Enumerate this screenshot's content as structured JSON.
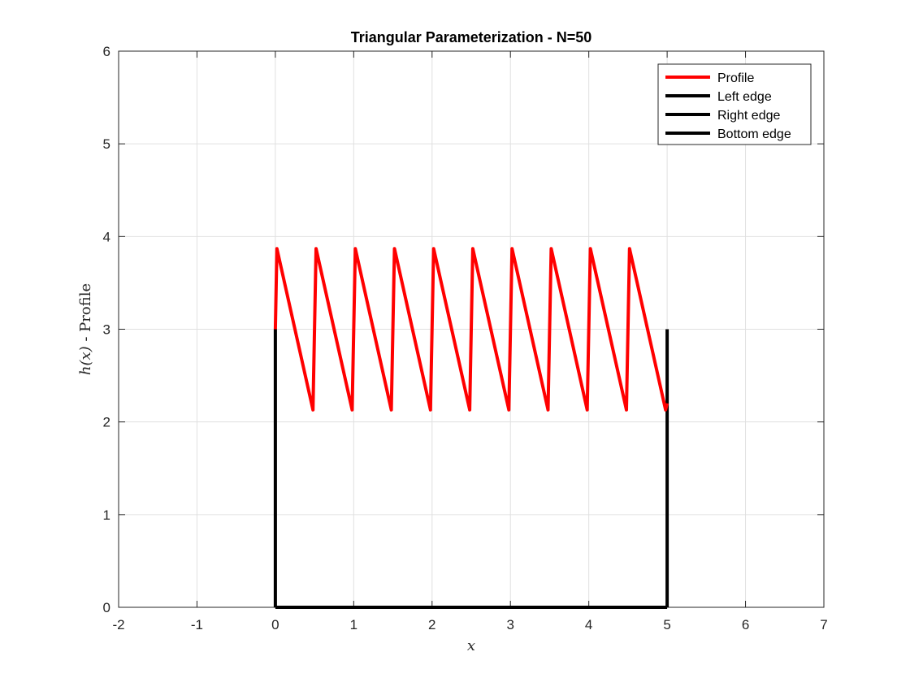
{
  "chart_data": {
    "type": "line",
    "title": "Triangular Parameterization - N=50",
    "xlabel": "x",
    "ylabel_math": "h(x)",
    "ylabel_text": " - Profile",
    "xlim": [
      -2,
      7
    ],
    "ylim": [
      0,
      6
    ],
    "xticks": [
      -2,
      -1,
      0,
      1,
      2,
      3,
      4,
      5,
      6,
      7
    ],
    "yticks": [
      0,
      1,
      2,
      3,
      4,
      5,
      6
    ],
    "grid": true,
    "legend_position": "top-right",
    "series": [
      {
        "name": "Profile",
        "color": "#ff0000",
        "x": [
          0.0,
          0.02,
          0.48,
          0.52,
          0.98,
          1.02,
          1.48,
          1.52,
          1.98,
          2.02,
          2.48,
          2.52,
          2.98,
          3.02,
          3.48,
          3.52,
          3.98,
          4.02,
          4.48,
          4.52,
          4.98,
          5.0
        ],
        "y": [
          3.0,
          3.87,
          2.13,
          3.87,
          2.13,
          3.87,
          2.13,
          3.87,
          2.13,
          3.87,
          2.13,
          3.87,
          2.13,
          3.87,
          2.13,
          3.87,
          2.13,
          3.87,
          2.13,
          3.87,
          2.13,
          2.2
        ]
      },
      {
        "name": "Left edge",
        "color": "#000000",
        "x": [
          0,
          0
        ],
        "y": [
          0,
          3
        ]
      },
      {
        "name": "Right edge",
        "color": "#000000",
        "x": [
          5,
          5
        ],
        "y": [
          0,
          3
        ]
      },
      {
        "name": "Bottom edge",
        "color": "#000000",
        "x": [
          0,
          5
        ],
        "y": [
          0,
          0
        ]
      }
    ]
  }
}
